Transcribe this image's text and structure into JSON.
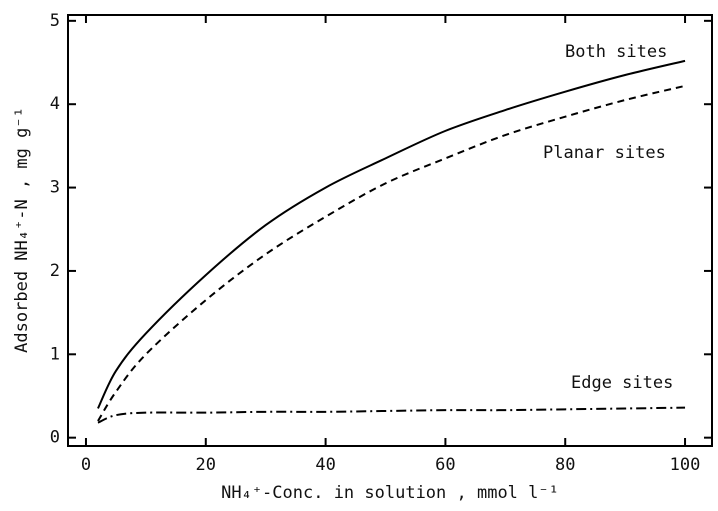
{
  "chart_data": {
    "type": "line",
    "x_label": "NH₄⁺-Conc. in solution , mmol l⁻¹",
    "y_label": "Adsorbed NH₄⁺-N , mg g⁻¹",
    "x": [
      2,
      5,
      10,
      20,
      30,
      40,
      50,
      60,
      70,
      80,
      90,
      100
    ],
    "series": [
      {
        "name": "Both sites",
        "color": "#000000",
        "style": "solid",
        "values": [
          0.35,
          0.8,
          1.25,
          1.95,
          2.55,
          3.0,
          3.35,
          3.68,
          3.93,
          4.15,
          4.35,
          4.52
        ]
      },
      {
        "name": "Planar sites",
        "color": "#000000",
        "style": "dashed",
        "values": [
          0.2,
          0.55,
          1.0,
          1.65,
          2.2,
          2.65,
          3.05,
          3.35,
          3.63,
          3.85,
          4.05,
          4.22
        ]
      },
      {
        "name": "Edge sites",
        "color": "#000000",
        "style": "dashdot",
        "values": [
          0.18,
          0.27,
          0.3,
          0.3,
          0.31,
          0.31,
          0.32,
          0.33,
          0.33,
          0.34,
          0.35,
          0.36
        ]
      }
    ],
    "xlim": [
      -3,
      104.5
    ],
    "ylim": [
      -0.1,
      5.07
    ],
    "xticks": [
      0,
      20,
      40,
      60,
      80,
      100
    ],
    "yticks": [
      0,
      1,
      2,
      3,
      4,
      5
    ]
  }
}
